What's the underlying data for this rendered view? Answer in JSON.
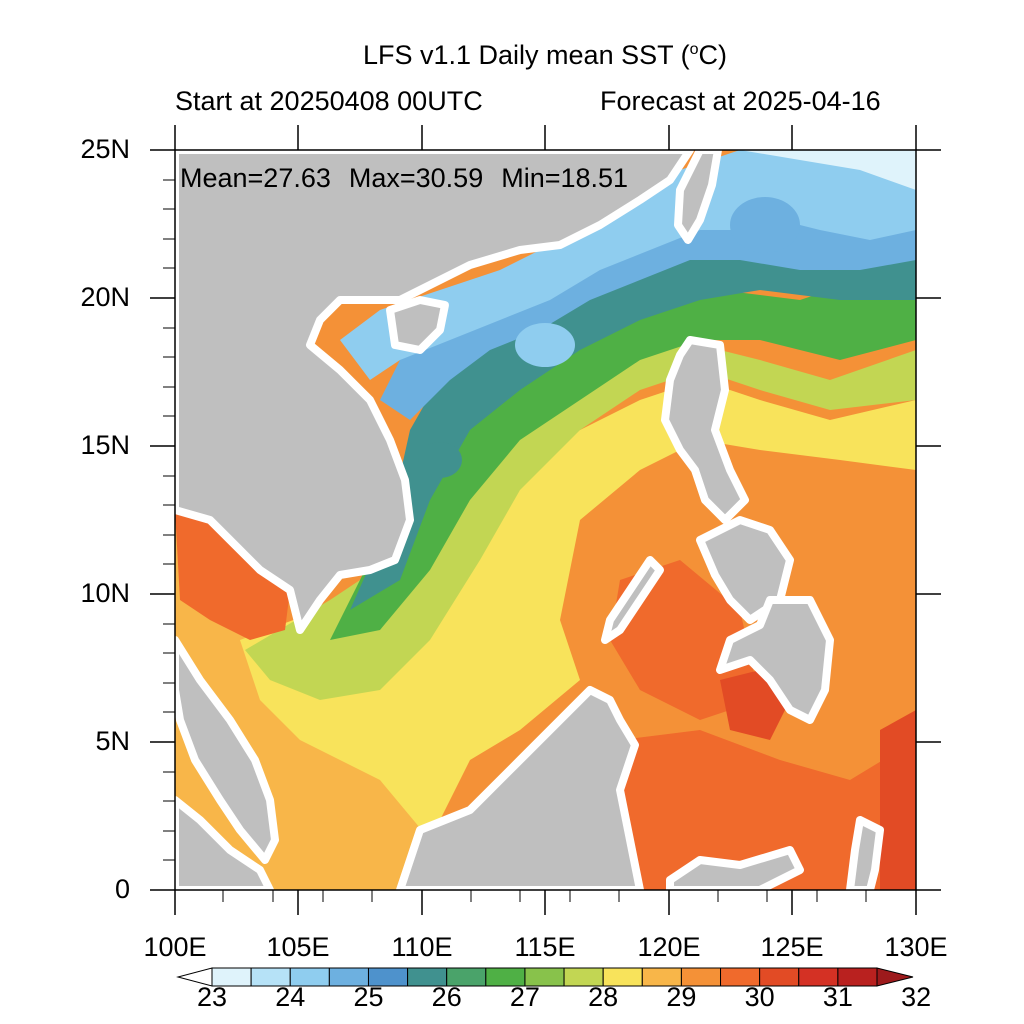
{
  "header": {
    "title_main": "LFS v1.1 Daily mean SST (",
    "title_degree": "o",
    "title_unit": "C)",
    "start": "Start at 20250408 00UTC",
    "forecast": "Forecast at 2025-04-16"
  },
  "stats": {
    "mean": "Mean=27.63",
    "max": "Max=30.59",
    "min": "Min=18.51"
  },
  "axes": {
    "lat_labels": [
      "25N",
      "20N",
      "15N",
      "10N",
      "5N",
      "0"
    ],
    "lon_labels": [
      "100E",
      "105E",
      "110E",
      "115E",
      "120E",
      "125E",
      "130E"
    ],
    "lat_range": [
      0,
      25
    ],
    "lon_range": [
      100,
      130
    ]
  },
  "colorbar": {
    "labels": [
      "23",
      "24",
      "25",
      "26",
      "27",
      "28",
      "29",
      "30",
      "31",
      "32"
    ],
    "colors": [
      "#ffffff",
      "#dff3fb",
      "#b6e2f7",
      "#8fcdef",
      "#6db0e0",
      "#4e92cc",
      "#40918f",
      "#4aa36a",
      "#4fb045",
      "#88c24b",
      "#c2d653",
      "#f8e35b",
      "#f8b649",
      "#f49137",
      "#f06a2c",
      "#e24b25",
      "#d43124",
      "#b9211f",
      "#9d1a1c"
    ]
  },
  "colors": {
    "land": "#bfbfbf",
    "cold": "#8fcdef",
    "mid_blue": "#6db0e0",
    "teal": "#40918f",
    "green": "#4fb045",
    "lime": "#88c24b",
    "olive": "#c2d653",
    "yellow": "#f8e35b",
    "light_orange": "#f8b649",
    "orange": "#f49137",
    "dark_orange": "#f06a2c",
    "red": "#e24b25"
  }
}
